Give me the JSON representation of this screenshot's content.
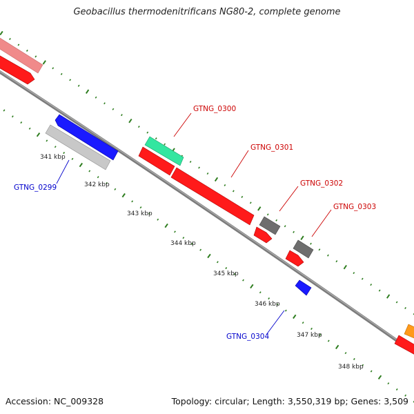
{
  "title": "Geobacillus thermodenitrificans NG80-2, complete genome",
  "footer": {
    "accession": "Accession: NC_009328",
    "summary": "Topology: circular; Length: 3,550,319 bp; Genes: 3,509"
  },
  "colors": {
    "backbone": "#8a8a8a",
    "tick": "#2e7d1f",
    "red": "#ff1a1a",
    "pink": "#f08a8a",
    "blue": "#1a1aff",
    "light_gray": "#c8c8c8",
    "teal": "#33e6a0",
    "dark_gray": "#6e6e6e",
    "orange": "#ff9a1a",
    "forward_label": "#cc0000",
    "reverse_label": "#0000cc"
  },
  "kbp_labels": [
    "341 kbp",
    "342 kbp",
    "343 kbp",
    "344 kbp",
    "345 kbp",
    "346 kbp",
    "347 kbp",
    "348 kbp"
  ],
  "gene_labels": [
    {
      "id": "GTNG_0299",
      "strand": "reverse"
    },
    {
      "id": "GTNG_0300",
      "strand": "forward"
    },
    {
      "id": "GTNG_0301",
      "strand": "forward"
    },
    {
      "id": "GTNG_0302",
      "strand": "forward"
    },
    {
      "id": "GTNG_0303",
      "strand": "forward"
    },
    {
      "id": "GTNG_0304",
      "strand": "reverse"
    }
  ]
}
